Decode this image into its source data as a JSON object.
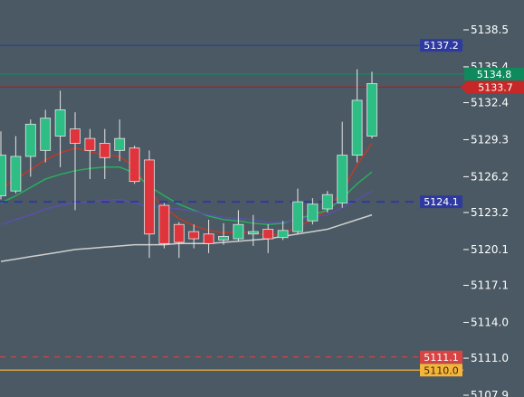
{
  "chart_data": {
    "type": "candlestick",
    "title": "",
    "xlabel": "",
    "ylabel": "",
    "ylim": [
      5108.0,
      5140.0
    ],
    "grid": false,
    "y_ticks": [
      "5138.5",
      "5135.4",
      "5132.4",
      "5129.3",
      "5126.2",
      "5123.2",
      "5120.1",
      "5117.1",
      "5114.0",
      "5111.0",
      "5107.9"
    ],
    "candles": [
      {
        "o": 5124.6,
        "h": 5130.0,
        "l": 5124.3,
        "c": 5128.0
      },
      {
        "o": 5125.0,
        "h": 5129.6,
        "l": 5124.8,
        "c": 5127.9
      },
      {
        "o": 5127.9,
        "h": 5131.0,
        "l": 5126.2,
        "c": 5130.6
      },
      {
        "o": 5128.4,
        "h": 5131.8,
        "l": 5127.4,
        "c": 5131.1
      },
      {
        "o": 5129.6,
        "h": 5133.4,
        "l": 5127.0,
        "c": 5131.8
      },
      {
        "o": 5130.2,
        "h": 5131.6,
        "l": 5123.4,
        "c": 5129.0
      },
      {
        "o": 5129.4,
        "h": 5130.2,
        "l": 5126.0,
        "c": 5128.4
      },
      {
        "o": 5129.0,
        "h": 5130.2,
        "l": 5126.0,
        "c": 5127.8
      },
      {
        "o": 5128.4,
        "h": 5131.0,
        "l": 5127.5,
        "c": 5129.4
      },
      {
        "o": 5128.6,
        "h": 5128.8,
        "l": 5125.6,
        "c": 5125.8
      },
      {
        "o": 5127.6,
        "h": 5128.4,
        "l": 5119.4,
        "c": 5121.4
      },
      {
        "o": 5123.8,
        "h": 5124.0,
        "l": 5120.2,
        "c": 5120.6
      },
      {
        "o": 5122.2,
        "h": 5122.4,
        "l": 5119.4,
        "c": 5120.7
      },
      {
        "o": 5121.6,
        "h": 5122.2,
        "l": 5120.2,
        "c": 5121.0
      },
      {
        "o": 5121.4,
        "h": 5122.6,
        "l": 5119.8,
        "c": 5120.6
      },
      {
        "o": 5120.9,
        "h": 5122.3,
        "l": 5120.5,
        "c": 5121.2
      },
      {
        "o": 5121.0,
        "h": 5123.4,
        "l": 5120.8,
        "c": 5122.2
      },
      {
        "o": 5121.4,
        "h": 5123.0,
        "l": 5120.4,
        "c": 5121.6
      },
      {
        "o": 5121.8,
        "h": 5122.2,
        "l": 5119.8,
        "c": 5121.0
      },
      {
        "o": 5121.1,
        "h": 5122.5,
        "l": 5120.9,
        "c": 5121.7
      },
      {
        "o": 5121.6,
        "h": 5125.2,
        "l": 5121.4,
        "c": 5124.1
      },
      {
        "o": 5122.5,
        "h": 5124.4,
        "l": 5122.2,
        "c": 5123.9
      },
      {
        "o": 5123.5,
        "h": 5125.0,
        "l": 5123.2,
        "c": 5124.7
      },
      {
        "o": 5124.0,
        "h": 5130.8,
        "l": 5123.6,
        "c": 5128.0
      },
      {
        "o": 5128.0,
        "h": 5135.2,
        "l": 5127.4,
        "c": 5132.6
      },
      {
        "o": 5129.6,
        "h": 5135.0,
        "l": 5129.4,
        "c": 5134.0
      }
    ],
    "moving_averages": [
      {
        "color": "#c0392b",
        "values": [
          5125.2,
          5126.0,
          5126.8,
          5127.6,
          5128.2,
          5128.6,
          5128.3,
          5128.0,
          5127.9,
          5127.0,
          5125.0,
          5123.6,
          5122.7,
          5122.1,
          5121.7,
          5121.5,
          5121.6,
          5121.5,
          5121.3,
          5121.4,
          5122.0,
          5122.6,
          5123.4,
          5125.0,
          5127.2,
          5129.0
        ]
      },
      {
        "color": "#27ae60",
        "values": [
          5124.0,
          5124.6,
          5125.3,
          5126.0,
          5126.4,
          5126.7,
          5126.9,
          5127.0,
          5127.0,
          5126.5,
          5125.4,
          5124.6,
          5123.9,
          5123.4,
          5122.9,
          5122.6,
          5122.5,
          5122.3,
          5122.2,
          5122.3,
          5122.7,
          5123.0,
          5123.4,
          5124.4,
          5125.6,
          5126.6
        ]
      },
      {
        "color": "#5b4fa8",
        "values": [
          5122.2,
          5122.6,
          5123.0,
          5123.5,
          5123.8,
          5124.0,
          5124.1,
          5124.2,
          5124.3,
          5124.0,
          5123.7,
          5123.6,
          5123.5,
          5123.3,
          5123.0,
          5122.8,
          5122.7,
          5122.6,
          5122.4,
          5122.4,
          5122.6,
          5122.8,
          5123.0,
          5123.6,
          5124.3,
          5125.0
        ]
      },
      {
        "color": "#cfcfcf",
        "values": [
          5119.1,
          5119.3,
          5119.5,
          5119.7,
          5119.9,
          5120.1,
          5120.2,
          5120.3,
          5120.4,
          5120.5,
          5120.5,
          5120.5,
          5120.6,
          5120.6,
          5120.6,
          5120.7,
          5120.8,
          5120.9,
          5121.0,
          5121.2,
          5121.4,
          5121.6,
          5121.8,
          5122.2,
          5122.6,
          5123.0
        ]
      }
    ],
    "price_lines": [
      {
        "value": 5137.2,
        "label": "5137.2",
        "color": "#2f3aa0",
        "style": "solid",
        "badge": "#2f3aa0"
      },
      {
        "value": 5134.8,
        "label": "5134.8",
        "color": "#0e8a5c",
        "style": "solid",
        "badge": "#0e8a5c"
      },
      {
        "value": 5133.7,
        "label": "5133.7",
        "color": "#b71c1c",
        "style": "solid",
        "badge": "#c62828"
      },
      {
        "value": 5124.1,
        "label": "5124.1",
        "color": "#2f3aa0",
        "style": "dashed",
        "badge": "#2f3aa0"
      },
      {
        "value": 5111.1,
        "label": "5111.1",
        "color": "#d84343",
        "style": "dashed",
        "badge": "#d84343"
      },
      {
        "value": 5110.0,
        "label": "5110.0",
        "color": "#f5b43c",
        "style": "solid",
        "badge": "#f5b43c"
      }
    ],
    "colors": {
      "background": "#4a5963",
      "up": "#2ebd85",
      "down": "#e0343c",
      "wick": "#e6e6e6",
      "axis_text": "#ffffff"
    }
  }
}
